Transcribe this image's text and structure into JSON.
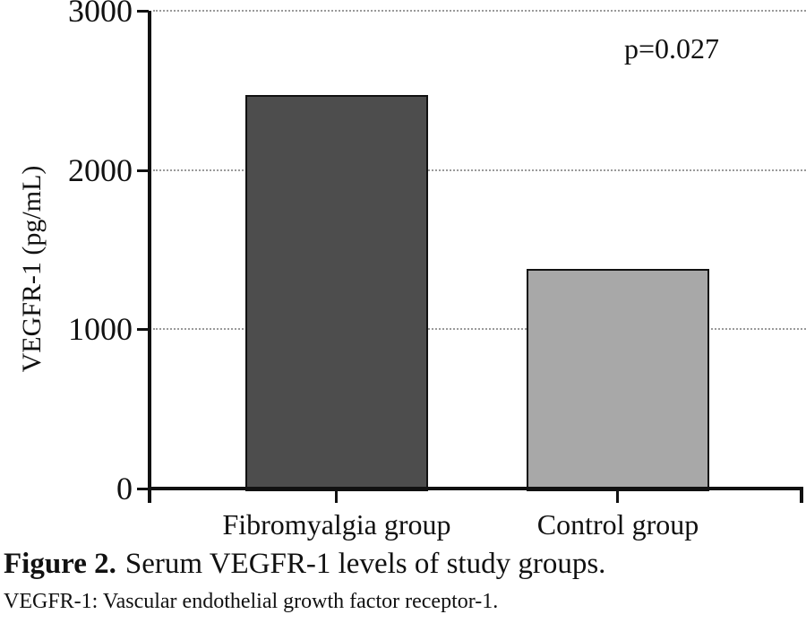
{
  "figure": {
    "annotation": "p=0.027",
    "caption_prefix": "Figure 2.",
    "caption_text": "Serum VEGFR-1 levels of study groups.",
    "footnote": "VEGFR-1: Vascular endothelial growth factor receptor-1."
  },
  "chart_data": {
    "type": "bar",
    "categories": [
      "Fibromyalgia group",
      "Control group"
    ],
    "values": [
      2470,
      1380
    ],
    "bar_colors": [
      "#4d4d4d",
      "#a8a8a8"
    ],
    "bar_border_color": "#111111",
    "title": "",
    "xlabel": "",
    "ylabel": "VEGFR-1 (pg/mL)",
    "ylim": [
      0,
      3000
    ],
    "yticks": [
      0,
      1000,
      2000,
      3000
    ],
    "grid": "horizontal-dotted",
    "legend": "none",
    "annotation": "p=0.027",
    "annotation_position": "top-right"
  }
}
